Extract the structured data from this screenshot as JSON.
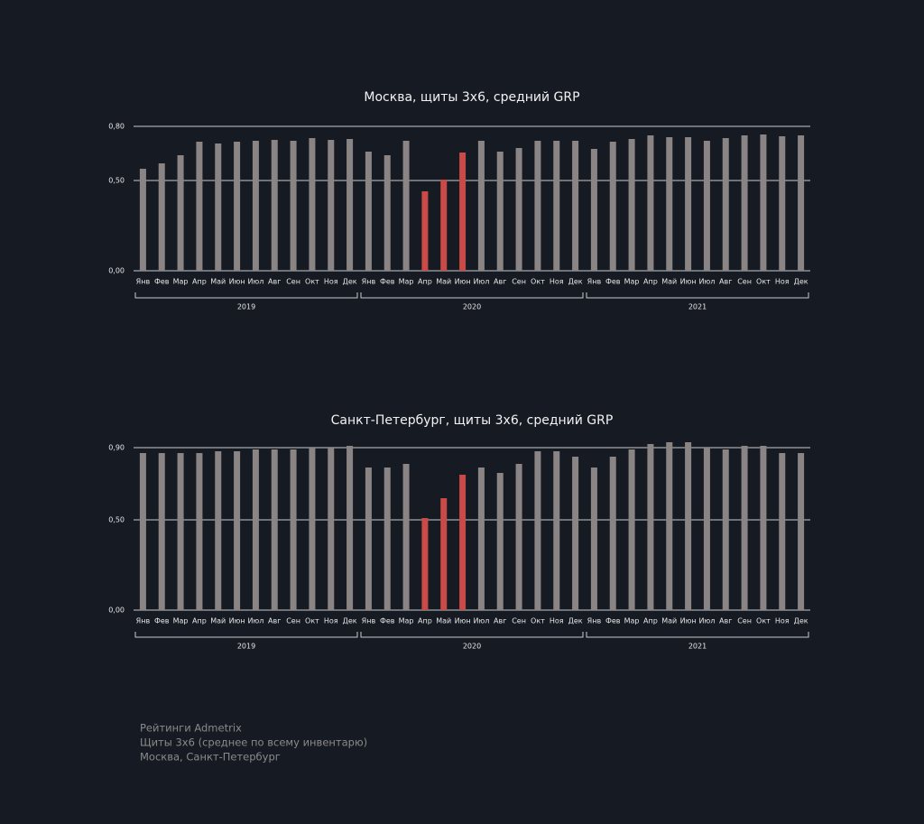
{
  "chart_data": [
    {
      "type": "bar",
      "title": "Москва, щиты 3х6, средний GRP",
      "categories": [
        "Янв",
        "Фев",
        "Мар",
        "Апр",
        "Май",
        "Июн",
        "Июл",
        "Авг",
        "Сен",
        "Окт",
        "Ноя",
        "Дек",
        "Янв",
        "Фев",
        "Мар",
        "Апр",
        "Май",
        "Июн",
        "Июл",
        "Авг",
        "Сен",
        "Окт",
        "Ноя",
        "Дек",
        "Янв",
        "Фев",
        "Мар",
        "Апр",
        "Май",
        "Июн",
        "Июл",
        "Авг",
        "Сен",
        "Окт",
        "Ноя",
        "Дек"
      ],
      "year_labels": [
        "2019",
        "2020",
        "2021"
      ],
      "values": [
        0.565,
        0.595,
        0.64,
        0.715,
        0.705,
        0.715,
        0.72,
        0.725,
        0.72,
        0.735,
        0.725,
        0.73,
        0.66,
        0.64,
        0.72,
        0.44,
        0.505,
        0.655,
        0.72,
        0.66,
        0.68,
        0.72,
        0.72,
        0.72,
        0.675,
        0.715,
        0.73,
        0.75,
        0.74,
        0.74,
        0.72,
        0.735,
        0.75,
        0.755,
        0.745,
        0.75
      ],
      "colors": [
        "#8a8584",
        "#8a8584",
        "#8a8584",
        "#8a8584",
        "#8a8584",
        "#8a8584",
        "#8a8584",
        "#8a8584",
        "#8a8584",
        "#8a8584",
        "#8a8584",
        "#8a8584",
        "#8a8584",
        "#8a8584",
        "#8a8584",
        "#c94a47",
        "#c94a47",
        "#c94a47",
        "#8a8584",
        "#8a8584",
        "#8a8584",
        "#8a8584",
        "#8a8584",
        "#8a8584",
        "#8a8584",
        "#8a8584",
        "#8a8584",
        "#8a8584",
        "#8a8584",
        "#8a8584",
        "#8a8584",
        "#8a8584",
        "#8a8584",
        "#8a8584",
        "#8a8584",
        "#8a8584"
      ],
      "ylim": [
        0,
        0.8
      ],
      "yticks": [
        {
          "value": 0,
          "label": "0,00"
        },
        {
          "value": 0.5,
          "label": "0,50"
        },
        {
          "value": 0.8,
          "label": "0,80"
        }
      ],
      "grid": true
    },
    {
      "type": "bar",
      "title": "Санкт-Петербург, щиты 3х6, средний GRP",
      "categories": [
        "Янв",
        "Фев",
        "Мар",
        "Апр",
        "Май",
        "Июн",
        "Июл",
        "Авг",
        "Сен",
        "Окт",
        "Ноя",
        "Дек",
        "Янв",
        "Фев",
        "Мар",
        "Апр",
        "Май",
        "Июн",
        "Июл",
        "Авг",
        "Сен",
        "Окт",
        "Ноя",
        "Дек",
        "Янв",
        "Фев",
        "Мар",
        "Апр",
        "Май",
        "Июн",
        "Июл",
        "Авг",
        "Сен",
        "Окт",
        "Ноя",
        "Дек"
      ],
      "year_labels": [
        "2019",
        "2020",
        "2021"
      ],
      "values": [
        0.87,
        0.87,
        0.87,
        0.87,
        0.88,
        0.88,
        0.89,
        0.89,
        0.89,
        0.9,
        0.9,
        0.91,
        0.79,
        0.79,
        0.81,
        0.51,
        0.62,
        0.75,
        0.79,
        0.76,
        0.81,
        0.88,
        0.88,
        0.85,
        0.79,
        0.85,
        0.89,
        0.92,
        0.93,
        0.93,
        0.9,
        0.89,
        0.91,
        0.91,
        0.87,
        0.87
      ],
      "colors": [
        "#8a8584",
        "#8a8584",
        "#8a8584",
        "#8a8584",
        "#8a8584",
        "#8a8584",
        "#8a8584",
        "#8a8584",
        "#8a8584",
        "#8a8584",
        "#8a8584",
        "#8a8584",
        "#8a8584",
        "#8a8584",
        "#8a8584",
        "#c94a47",
        "#c94a47",
        "#c94a47",
        "#8a8584",
        "#8a8584",
        "#8a8584",
        "#8a8584",
        "#8a8584",
        "#8a8584",
        "#8a8584",
        "#8a8584",
        "#8a8584",
        "#8a8584",
        "#8a8584",
        "#8a8584",
        "#8a8584",
        "#8a8584",
        "#8a8584",
        "#8a8584",
        "#8a8584",
        "#8a8584"
      ],
      "ylim": [
        0,
        0.9
      ],
      "yticks": [
        {
          "value": 0,
          "label": "0,00"
        },
        {
          "value": 0.5,
          "label": "0,50"
        },
        {
          "value": 0.9,
          "label": "0,90"
        }
      ],
      "grid": true
    }
  ],
  "footer": {
    "lines": [
      "Рейтинги Admetrix",
      "Щиты 3х6 (среднее по всему инвентарю)",
      "Москва, Санкт-Петербург"
    ]
  }
}
